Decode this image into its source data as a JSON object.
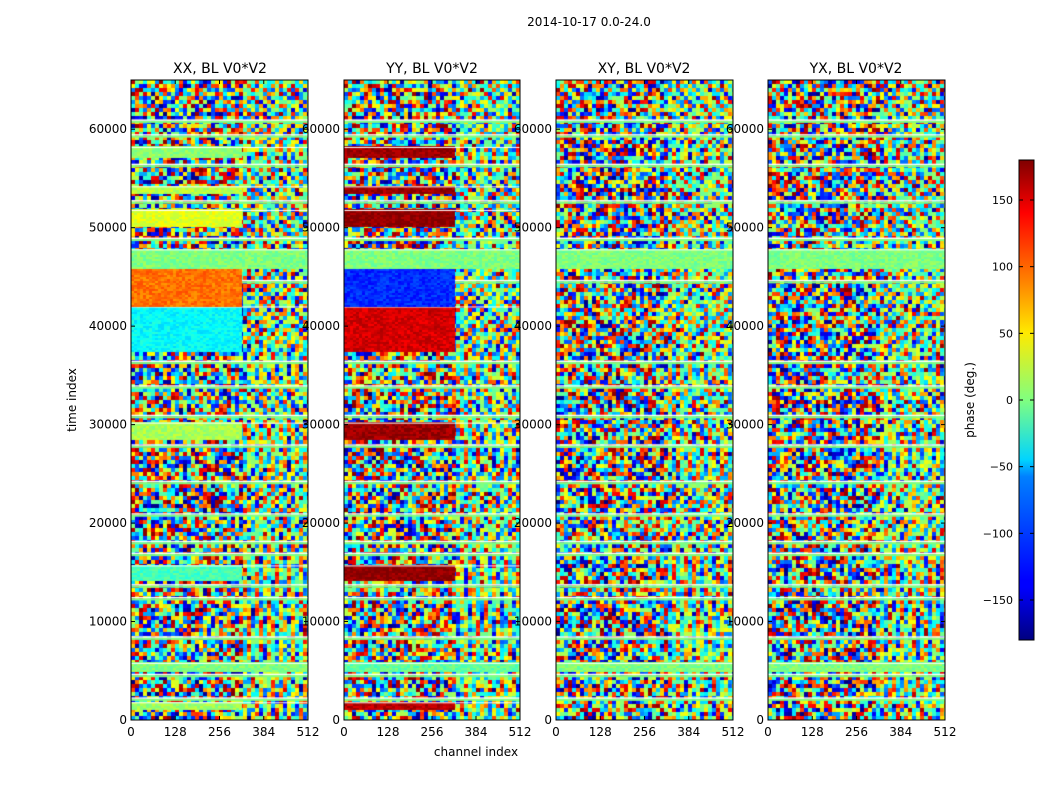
{
  "suptitle": "2014-10-17 0.0-24.0",
  "chart_data": {
    "type": "heatmap",
    "shared_xlabel": "channel index",
    "shared_ylabel": "time index",
    "x_ticks": [
      0,
      128,
      256,
      384,
      512
    ],
    "y_ticks": [
      0,
      10000,
      20000,
      30000,
      40000,
      50000,
      60000
    ],
    "xlim": [
      0,
      512
    ],
    "ylim": [
      0,
      65000
    ],
    "colormap": "jet",
    "colorbar": {
      "label": "phase (deg.)",
      "range": [
        -180,
        180
      ],
      "ticks": [
        -150,
        -100,
        -50,
        0,
        50,
        100,
        150
      ],
      "tick_labels": [
        "−150",
        "−100",
        "−50",
        "0",
        "50",
        "100",
        "150"
      ]
    },
    "panels": [
      {
        "title": "XX, BL V0*V2",
        "uniform_bands": [
          {
            "t0": 1200,
            "t1": 1800,
            "c1": 320,
            "phase": 10
          },
          {
            "t0": 5000,
            "t1": 5800,
            "c1": 512,
            "phase": 0
          },
          {
            "t0": 14200,
            "t1": 15700,
            "c1": 320,
            "phase": -20
          },
          {
            "t0": 28500,
            "t1": 30200,
            "c1": 320,
            "phase": 15
          },
          {
            "t0": 37500,
            "t1": 42000,
            "c1": 320,
            "phase": -45
          },
          {
            "t0": 42000,
            "t1": 46000,
            "c1": 320,
            "phase": 95
          },
          {
            "t0": 46000,
            "t1": 47800,
            "c1": 512,
            "phase": 0
          },
          {
            "t0": 50200,
            "t1": 51800,
            "c1": 320,
            "phase": 35
          },
          {
            "t0": 53500,
            "t1": 54200,
            "c1": 320,
            "phase": 20
          },
          {
            "t0": 57200,
            "t1": 58200,
            "c1": 320,
            "phase": 5
          }
        ]
      },
      {
        "title": "YY, BL V0*V2",
        "uniform_bands": [
          {
            "t0": 1200,
            "t1": 1800,
            "c1": 320,
            "phase": 160
          },
          {
            "t0": 5000,
            "t1": 5800,
            "c1": 512,
            "phase": -10
          },
          {
            "t0": 14200,
            "t1": 15700,
            "c1": 320,
            "phase": 175
          },
          {
            "t0": 28500,
            "t1": 30200,
            "c1": 320,
            "phase": 170
          },
          {
            "t0": 37500,
            "t1": 42000,
            "c1": 320,
            "phase": 150
          },
          {
            "t0": 42000,
            "t1": 46000,
            "c1": 320,
            "phase": -120
          },
          {
            "t0": 46000,
            "t1": 47800,
            "c1": 512,
            "phase": 0
          },
          {
            "t0": 50200,
            "t1": 51800,
            "c1": 320,
            "phase": 175
          },
          {
            "t0": 53500,
            "t1": 54200,
            "c1": 320,
            "phase": 170
          },
          {
            "t0": 57200,
            "t1": 58200,
            "c1": 320,
            "phase": 170
          }
        ]
      },
      {
        "title": "XY, BL V0*V2",
        "uniform_bands": [
          {
            "t0": 5000,
            "t1": 5800,
            "c1": 512,
            "phase": 0
          },
          {
            "t0": 46000,
            "t1": 47800,
            "c1": 512,
            "phase": 0
          }
        ]
      },
      {
        "title": "YX, BL V0*V2",
        "uniform_bands": [
          {
            "t0": 5000,
            "t1": 5800,
            "c1": 512,
            "phase": 0
          },
          {
            "t0": 46000,
            "t1": 47800,
            "c1": 512,
            "phase": 0
          }
        ]
      }
    ],
    "flagged_time_lines": [
      2300,
      4700,
      8500,
      12500,
      13800,
      17000,
      18200,
      21000,
      24300,
      28000,
      31000,
      34000,
      36500,
      44700,
      49000,
      52800,
      56500,
      59500,
      61000
    ]
  }
}
